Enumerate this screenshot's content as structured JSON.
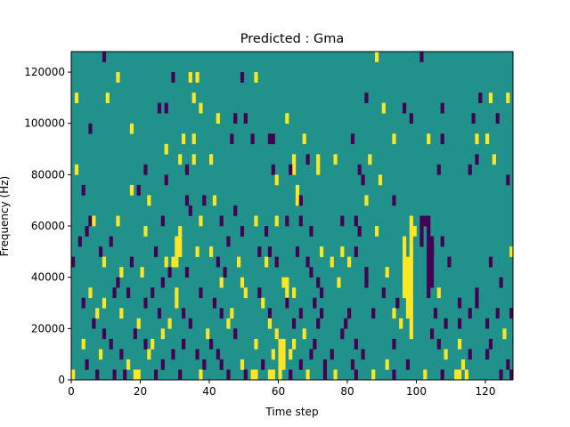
{
  "chart_data": {
    "type": "heatmap",
    "title": "Predicted : Gma",
    "xlabel": "Time step",
    "ylabel": "Frequency (Hz)",
    "xlim": [
      0,
      128
    ],
    "ylim": [
      0,
      128000
    ],
    "x_ticks": [
      0,
      20,
      40,
      60,
      80,
      100,
      120
    ],
    "y_ticks": [
      0,
      20000,
      40000,
      60000,
      80000,
      100000,
      120000
    ],
    "x_tick_labels": [
      "0",
      "20",
      "40",
      "60",
      "80",
      "100",
      "120"
    ],
    "y_tick_labels": [
      "0",
      "20000",
      "40000",
      "60000",
      "80000",
      "100000",
      "120000"
    ],
    "grid": false,
    "colors": {
      "background": "#21918c",
      "low": "#440154",
      "high": "#fde725"
    },
    "freq_bands": 32,
    "time_steps": 128,
    "events": [
      {
        "t": 98,
        "band_from": 4,
        "band_to": 16,
        "level": "high"
      },
      {
        "t": 97,
        "band_from": 6,
        "band_to": 12,
        "level": "high"
      },
      {
        "t": 96,
        "band_from": 8,
        "band_to": 14,
        "level": "high"
      },
      {
        "t": 103,
        "band_from": 8,
        "band_to": 16,
        "level": "low"
      },
      {
        "t": 104,
        "band_from": 10,
        "band_to": 14,
        "level": "low"
      },
      {
        "t": 101,
        "band_from": 13,
        "band_to": 16,
        "level": "low"
      },
      {
        "t": 60,
        "band_from": 0,
        "band_to": 4,
        "level": "high"
      },
      {
        "t": 61,
        "band_from": 1,
        "band_to": 4,
        "level": "high"
      },
      {
        "t": 62,
        "band_from": 7,
        "band_to": 10,
        "level": "high"
      },
      {
        "t": 52,
        "band_from": 0,
        "band_to": 1,
        "level": "high"
      },
      {
        "t": 53,
        "band_from": 0,
        "band_to": 1,
        "level": "high"
      },
      {
        "t": 57,
        "band_from": 0,
        "band_to": 1,
        "level": "high"
      },
      {
        "t": 58,
        "band_from": 0,
        "band_to": 1,
        "level": "high"
      },
      {
        "t": 111,
        "band_from": 0,
        "band_to": 1,
        "level": "high"
      },
      {
        "t": 112,
        "band_from": 0,
        "band_to": 1,
        "level": "high"
      },
      {
        "t": 18,
        "band_from": 0,
        "band_to": 1,
        "level": "high"
      },
      {
        "t": 19,
        "band_from": 0,
        "band_to": 1,
        "level": "high"
      },
      {
        "t": 30,
        "band_from": 11,
        "band_to": 14,
        "level": "high"
      },
      {
        "t": 31,
        "band_from": 12,
        "band_to": 15,
        "level": "high"
      },
      {
        "t": 64,
        "band_from": 20,
        "band_to": 22,
        "level": "high"
      },
      {
        "t": 65,
        "band_from": 17,
        "band_to": 19,
        "level": "high"
      }
    ],
    "cells": [
      [
        9,
        31,
        "low"
      ],
      [
        88,
        31,
        "high"
      ],
      [
        101,
        31,
        "low"
      ],
      [
        13,
        29,
        "high"
      ],
      [
        29,
        29,
        "low"
      ],
      [
        34,
        29,
        "high"
      ],
      [
        36,
        29,
        "high"
      ],
      [
        49,
        29,
        "low"
      ],
      [
        53,
        29,
        "high"
      ],
      [
        1,
        27,
        "high"
      ],
      [
        10,
        27,
        "high"
      ],
      [
        25,
        26,
        "low"
      ],
      [
        27,
        26,
        "low"
      ],
      [
        35,
        27,
        "high"
      ],
      [
        37,
        26,
        "high"
      ],
      [
        85,
        27,
        "low"
      ],
      [
        90,
        26,
        "high"
      ],
      [
        96,
        26,
        "low"
      ],
      [
        107,
        26,
        "low"
      ],
      [
        118,
        27,
        "low"
      ],
      [
        121,
        27,
        "high"
      ],
      [
        126,
        27,
        "high"
      ],
      [
        42,
        25,
        "high"
      ],
      [
        47,
        25,
        "low"
      ],
      [
        50,
        25,
        "low"
      ],
      [
        62,
        25,
        "high"
      ],
      [
        98,
        25,
        "low"
      ],
      [
        116,
        25,
        "low"
      ],
      [
        123,
        25,
        "low"
      ],
      [
        5,
        24,
        "low"
      ],
      [
        17,
        24,
        "high"
      ],
      [
        32,
        23,
        "high"
      ],
      [
        35,
        23,
        "high"
      ],
      [
        46,
        23,
        "low"
      ],
      [
        52,
        23,
        "low"
      ],
      [
        57,
        23,
        "low"
      ],
      [
        58,
        23,
        "low"
      ],
      [
        67,
        23,
        "high"
      ],
      [
        81,
        23,
        "low"
      ],
      [
        93,
        23,
        "high"
      ],
      [
        103,
        23,
        "high"
      ],
      [
        107,
        23,
        "low"
      ],
      [
        117,
        23,
        "high"
      ],
      [
        120,
        23,
        "high"
      ],
      [
        27,
        22,
        "high"
      ],
      [
        31,
        21,
        "high"
      ],
      [
        35,
        21,
        "high"
      ],
      [
        40,
        21,
        "high"
      ],
      [
        68,
        21,
        "low"
      ],
      [
        71,
        21,
        "high"
      ],
      [
        76,
        21,
        "high"
      ],
      [
        86,
        21,
        "high"
      ],
      [
        117,
        21,
        "low"
      ],
      [
        122,
        21,
        "high"
      ],
      [
        1,
        20,
        "high"
      ],
      [
        21,
        20,
        "low"
      ],
      [
        27,
        19,
        "low"
      ],
      [
        33,
        20,
        "low"
      ],
      [
        58,
        20,
        "low"
      ],
      [
        59,
        19,
        "high"
      ],
      [
        63,
        20,
        "low"
      ],
      [
        71,
        20,
        "high"
      ],
      [
        83,
        20,
        "low"
      ],
      [
        84,
        19,
        "low"
      ],
      [
        89,
        19,
        "high"
      ],
      [
        106,
        20,
        "low"
      ],
      [
        115,
        20,
        "low"
      ],
      [
        126,
        19,
        "low"
      ],
      [
        3,
        18,
        "low"
      ],
      [
        17,
        18,
        "high"
      ],
      [
        19,
        18,
        "low"
      ],
      [
        22,
        17,
        "high"
      ],
      [
        33,
        17,
        "low"
      ],
      [
        34,
        16,
        "low"
      ],
      [
        38,
        17,
        "low"
      ],
      [
        41,
        17,
        "high"
      ],
      [
        47,
        16,
        "low"
      ],
      [
        66,
        17,
        "low"
      ],
      [
        85,
        17,
        "high"
      ],
      [
        93,
        17,
        "low"
      ],
      [
        5,
        15,
        "low"
      ],
      [
        6,
        15,
        "high"
      ],
      [
        13,
        15,
        "high"
      ],
      [
        26,
        15,
        "low"
      ],
      [
        37,
        15,
        "high"
      ],
      [
        43,
        15,
        "low"
      ],
      [
        53,
        15,
        "high"
      ],
      [
        59,
        15,
        "high"
      ],
      [
        62,
        15,
        "low"
      ],
      [
        66,
        15,
        "low"
      ],
      [
        78,
        15,
        "low"
      ],
      [
        82,
        15,
        "low"
      ],
      [
        102,
        15,
        "low"
      ],
      [
        4,
        14,
        "low"
      ],
      [
        11,
        13,
        "low"
      ],
      [
        21,
        14,
        "high"
      ],
      [
        45,
        13,
        "low"
      ],
      [
        49,
        14,
        "low"
      ],
      [
        56,
        14,
        "low"
      ],
      [
        69,
        14,
        "low"
      ],
      [
        83,
        14,
        "low"
      ],
      [
        88,
        14,
        "high"
      ],
      [
        99,
        14,
        "high"
      ],
      [
        107,
        13,
        "low"
      ],
      [
        2,
        13,
        "low"
      ],
      [
        8,
        12,
        "low"
      ],
      [
        24,
        12,
        "low"
      ],
      [
        36,
        12,
        "high"
      ],
      [
        40,
        12,
        "high"
      ],
      [
        54,
        12,
        "low"
      ],
      [
        57,
        12,
        "low"
      ],
      [
        65,
        12,
        "low"
      ],
      [
        72,
        12,
        "high"
      ],
      [
        78,
        12,
        "high"
      ],
      [
        82,
        12,
        "low"
      ],
      [
        104,
        12,
        "low"
      ],
      [
        127,
        12,
        "high"
      ],
      [
        0,
        11,
        "low"
      ],
      [
        9,
        11,
        "high"
      ],
      [
        17,
        11,
        "low"
      ],
      [
        27,
        11,
        "high"
      ],
      [
        29,
        11,
        "high"
      ],
      [
        42,
        11,
        "low"
      ],
      [
        48,
        11,
        "high"
      ],
      [
        56,
        11,
        "high"
      ],
      [
        59,
        11,
        "low"
      ],
      [
        68,
        11,
        "low"
      ],
      [
        75,
        11,
        "high"
      ],
      [
        80,
        11,
        "high"
      ],
      [
        109,
        11,
        "low"
      ],
      [
        121,
        11,
        "low"
      ],
      [
        14,
        10,
        "high"
      ],
      [
        20,
        10,
        "high"
      ],
      [
        28,
        10,
        "low"
      ],
      [
        33,
        10,
        "low"
      ],
      [
        44,
        10,
        "low"
      ],
      [
        69,
        10,
        "low"
      ],
      [
        85,
        10,
        "low"
      ],
      [
        91,
        10,
        "high"
      ],
      [
        13,
        9,
        "low"
      ],
      [
        26,
        9,
        "low"
      ],
      [
        43,
        9,
        "high"
      ],
      [
        49,
        9,
        "high"
      ],
      [
        61,
        9,
        "high"
      ],
      [
        71,
        9,
        "low"
      ],
      [
        77,
        9,
        "high"
      ],
      [
        85,
        9,
        "low"
      ],
      [
        104,
        9,
        "low"
      ],
      [
        124,
        9,
        "low"
      ],
      [
        5,
        8,
        "high"
      ],
      [
        12,
        8,
        "low"
      ],
      [
        16,
        8,
        "low"
      ],
      [
        23,
        8,
        "low"
      ],
      [
        30,
        8,
        "high"
      ],
      [
        37,
        8,
        "low"
      ],
      [
        50,
        8,
        "high"
      ],
      [
        54,
        8,
        "low"
      ],
      [
        64,
        8,
        "high"
      ],
      [
        72,
        8,
        "low"
      ],
      [
        90,
        8,
        "low"
      ],
      [
        106,
        8,
        "high"
      ],
      [
        117,
        8,
        "low"
      ],
      [
        3,
        7,
        "low"
      ],
      [
        9,
        7,
        "high"
      ],
      [
        21,
        7,
        "low"
      ],
      [
        30,
        7,
        "high"
      ],
      [
        41,
        7,
        "low"
      ],
      [
        55,
        7,
        "high"
      ],
      [
        62,
        7,
        "low"
      ],
      [
        70,
        7,
        "low"
      ],
      [
        94,
        7,
        "low"
      ],
      [
        112,
        7,
        "low"
      ],
      [
        117,
        7,
        "low"
      ],
      [
        7,
        6,
        "high"
      ],
      [
        14,
        6,
        "high"
      ],
      [
        25,
        6,
        "low"
      ],
      [
        32,
        6,
        "low"
      ],
      [
        43,
        6,
        "low"
      ],
      [
        46,
        6,
        "high"
      ],
      [
        57,
        6,
        "low"
      ],
      [
        66,
        6,
        "low"
      ],
      [
        72,
        6,
        "low"
      ],
      [
        80,
        6,
        "low"
      ],
      [
        87,
        6,
        "low"
      ],
      [
        93,
        6,
        "high"
      ],
      [
        105,
        6,
        "low"
      ],
      [
        115,
        6,
        "low"
      ],
      [
        123,
        6,
        "low"
      ],
      [
        127,
        6,
        "low"
      ],
      [
        6,
        5,
        "low"
      ],
      [
        19,
        5,
        "high"
      ],
      [
        28,
        5,
        "high"
      ],
      [
        34,
        5,
        "low"
      ],
      [
        45,
        5,
        "high"
      ],
      [
        57,
        5,
        "high"
      ],
      [
        64,
        5,
        "low"
      ],
      [
        71,
        5,
        "low"
      ],
      [
        79,
        5,
        "low"
      ],
      [
        95,
        5,
        "high"
      ],
      [
        108,
        5,
        "low"
      ],
      [
        112,
        5,
        "low"
      ],
      [
        120,
        5,
        "low"
      ],
      [
        9,
        4,
        "low"
      ],
      [
        18,
        4,
        "low"
      ],
      [
        26,
        4,
        "high"
      ],
      [
        39,
        4,
        "high"
      ],
      [
        47,
        4,
        "low"
      ],
      [
        59,
        4,
        "high"
      ],
      [
        67,
        4,
        "high"
      ],
      [
        78,
        4,
        "low"
      ],
      [
        104,
        4,
        "low"
      ],
      [
        125,
        4,
        "high"
      ],
      [
        3,
        3,
        "high"
      ],
      [
        11,
        3,
        "low"
      ],
      [
        21,
        3,
        "low"
      ],
      [
        23,
        3,
        "high"
      ],
      [
        32,
        3,
        "low"
      ],
      [
        40,
        3,
        "low"
      ],
      [
        53,
        3,
        "high"
      ],
      [
        64,
        3,
        "high"
      ],
      [
        70,
        3,
        "low"
      ],
      [
        82,
        3,
        "low"
      ],
      [
        93,
        3,
        "low"
      ],
      [
        106,
        3,
        "low"
      ],
      [
        112,
        3,
        "high"
      ],
      [
        121,
        3,
        "low"
      ],
      [
        8,
        2,
        "high"
      ],
      [
        14,
        2,
        "low"
      ],
      [
        22,
        2,
        "high"
      ],
      [
        29,
        2,
        "low"
      ],
      [
        36,
        2,
        "low"
      ],
      [
        42,
        2,
        "low"
      ],
      [
        58,
        2,
        "high"
      ],
      [
        63,
        2,
        "high"
      ],
      [
        69,
        2,
        "low"
      ],
      [
        75,
        2,
        "low"
      ],
      [
        84,
        2,
        "low"
      ],
      [
        108,
        2,
        "high"
      ],
      [
        115,
        2,
        "low"
      ],
      [
        120,
        2,
        "low"
      ],
      [
        4,
        1,
        "low"
      ],
      [
        16,
        1,
        "high"
      ],
      [
        26,
        1,
        "low"
      ],
      [
        38,
        1,
        "low"
      ],
      [
        43,
        1,
        "low"
      ],
      [
        49,
        1,
        "high"
      ],
      [
        55,
        1,
        "low"
      ],
      [
        66,
        1,
        "low"
      ],
      [
        73,
        1,
        "low"
      ],
      [
        81,
        1,
        "low"
      ],
      [
        91,
        1,
        "high"
      ],
      [
        97,
        1,
        "low"
      ],
      [
        113,
        1,
        "high"
      ],
      [
        126,
        1,
        "low"
      ],
      [
        0,
        0,
        "high"
      ],
      [
        7,
        0,
        "low"
      ],
      [
        12,
        0,
        "low"
      ],
      [
        15,
        0,
        "low"
      ],
      [
        24,
        0,
        "low"
      ],
      [
        31,
        0,
        "low"
      ],
      [
        37,
        0,
        "high"
      ],
      [
        45,
        0,
        "low"
      ],
      [
        50,
        0,
        "low"
      ],
      [
        63,
        0,
        "low"
      ],
      [
        68,
        0,
        "high"
      ],
      [
        73,
        0,
        "low"
      ],
      [
        76,
        0,
        "high"
      ],
      [
        82,
        0,
        "low"
      ],
      [
        87,
        0,
        "high"
      ],
      [
        93,
        0,
        "low"
      ],
      [
        102,
        0,
        "high"
      ],
      [
        107,
        0,
        "low"
      ],
      [
        114,
        0,
        "high"
      ],
      [
        124,
        0,
        "low"
      ],
      [
        127,
        0,
        "low"
      ]
    ]
  }
}
